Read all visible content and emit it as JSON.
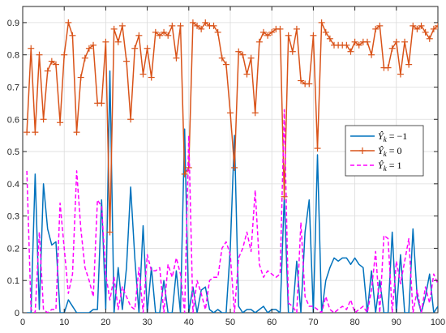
{
  "chart_data": {
    "type": "line",
    "title": "",
    "xlabel": "",
    "ylabel": "",
    "xlim": [
      0,
      100
    ],
    "ylim": [
      0,
      0.95
    ],
    "xticks": [
      0,
      10,
      20,
      30,
      40,
      50,
      60,
      70,
      80,
      90,
      100
    ],
    "yticks": [
      0,
      0.1,
      0.2,
      0.3,
      0.4,
      0.5,
      0.6,
      0.7,
      0.8,
      0.9
    ],
    "grid": true,
    "legend_position": "right",
    "x": [
      1,
      2,
      3,
      4,
      5,
      6,
      7,
      8,
      9,
      10,
      11,
      12,
      13,
      14,
      15,
      16,
      17,
      18,
      19,
      20,
      21,
      22,
      23,
      24,
      25,
      26,
      27,
      28,
      29,
      30,
      31,
      32,
      33,
      34,
      35,
      36,
      37,
      38,
      39,
      40,
      41,
      42,
      43,
      44,
      45,
      46,
      47,
      48,
      49,
      50,
      51,
      52,
      53,
      54,
      55,
      56,
      57,
      58,
      59,
      60,
      61,
      62,
      63,
      64,
      65,
      66,
      67,
      68,
      69,
      70,
      71,
      72,
      73,
      74,
      75,
      76,
      77,
      78,
      79,
      80,
      81,
      82,
      83,
      84,
      85,
      86,
      87,
      88,
      89,
      90,
      91,
      92,
      93,
      94,
      95,
      96,
      97,
      98,
      99,
      100
    ],
    "series": [
      {
        "name": "Ŷk = −1",
        "legend": {
          "var": "Ŷ",
          "sub": "k",
          "rest": " = −1"
        },
        "color": "#0072BD",
        "style": "solid",
        "marker": "none",
        "values": [
          0.0,
          0.0,
          0.43,
          0.01,
          0.4,
          0.26,
          0.21,
          0.22,
          0.0,
          0.0,
          0.04,
          0.02,
          0.0,
          0.0,
          0.0,
          0.0,
          0.01,
          0.01,
          0.35,
          0.01,
          0.75,
          0.0,
          0.14,
          0.01,
          0.14,
          0.39,
          0.17,
          0.0,
          0.27,
          0.0,
          0.14,
          0.0,
          0.0,
          0.1,
          0.0,
          0.0,
          0.13,
          0.0,
          0.57,
          0.0,
          0.08,
          0.0,
          0.07,
          0.08,
          0.01,
          0.0,
          0.01,
          0.0,
          0.0,
          0.2,
          0.55,
          0.02,
          0.0,
          0.01,
          0.01,
          0.0,
          0.01,
          0.02,
          0.0,
          0.01,
          0.01,
          0.0,
          0.36,
          0.0,
          0.0,
          0.16,
          0.0,
          0.25,
          0.35,
          0.0,
          0.49,
          0.0,
          0.1,
          0.14,
          0.17,
          0.16,
          0.17,
          0.17,
          0.15,
          0.17,
          0.15,
          0.14,
          0.0,
          0.13,
          0.0,
          0.1,
          0.0,
          0.0,
          0.25,
          0.0,
          0.18,
          0.0,
          0.0,
          0.26,
          0.05,
          0.0,
          0.05,
          0.12,
          0.0,
          0.02
        ]
      },
      {
        "name": "Ŷk = 0",
        "legend": {
          "var": "Ŷ",
          "sub": "k",
          "rest": " = 0"
        },
        "color": "#D95319",
        "style": "solid",
        "marker": "plus",
        "values": [
          0.56,
          0.82,
          0.56,
          0.8,
          0.6,
          0.75,
          0.78,
          0.77,
          0.59,
          0.8,
          0.9,
          0.86,
          0.56,
          0.73,
          0.79,
          0.82,
          0.83,
          0.65,
          0.65,
          0.84,
          0.25,
          0.88,
          0.84,
          0.89,
          0.78,
          0.6,
          0.82,
          0.86,
          0.74,
          0.82,
          0.73,
          0.87,
          0.86,
          0.87,
          0.86,
          0.89,
          0.79,
          0.89,
          0.43,
          0.45,
          0.9,
          0.89,
          0.88,
          0.9,
          0.89,
          0.89,
          0.87,
          0.79,
          0.77,
          0.62,
          0.45,
          0.81,
          0.8,
          0.74,
          0.79,
          0.62,
          0.84,
          0.87,
          0.86,
          0.87,
          0.88,
          0.88,
          0.36,
          0.86,
          0.81,
          0.88,
          0.72,
          0.71,
          0.71,
          0.86,
          0.51,
          0.9,
          0.87,
          0.85,
          0.83,
          0.83,
          0.83,
          0.83,
          0.81,
          0.84,
          0.83,
          0.84,
          0.84,
          0.8,
          0.88,
          0.89,
          0.76,
          0.76,
          0.82,
          0.84,
          0.74,
          0.84,
          0.77,
          0.89,
          0.88,
          0.89,
          0.87,
          0.85,
          0.88,
          0.89
        ]
      },
      {
        "name": "Ŷk = 1",
        "legend": {
          "var": "Ŷ",
          "sub": "k",
          "rest": " = 1"
        },
        "color": "#FF00FF",
        "style": "dashed",
        "marker": "none",
        "values": [
          0.44,
          0.01,
          0.0,
          0.25,
          0.01,
          0.0,
          0.01,
          0.01,
          0.34,
          0.2,
          0.06,
          0.12,
          0.44,
          0.26,
          0.14,
          0.1,
          0.05,
          0.35,
          0.33,
          0.12,
          0.04,
          0.11,
          0.01,
          0.08,
          0.05,
          0.02,
          0.01,
          0.14,
          0.0,
          0.18,
          0.13,
          0.13,
          0.14,
          0.0,
          0.15,
          0.11,
          0.17,
          0.12,
          0.0,
          0.55,
          0.0,
          0.1,
          0.06,
          0.01,
          0.1,
          0.11,
          0.11,
          0.2,
          0.22,
          0.18,
          0.0,
          0.17,
          0.2,
          0.25,
          0.19,
          0.38,
          0.15,
          0.11,
          0.13,
          0.12,
          0.11,
          0.12,
          0.63,
          0.03,
          0.02,
          0.0,
          0.28,
          0.05,
          0.02,
          0.02,
          0.01,
          0.0,
          0.05,
          0.01,
          0.0,
          0.01,
          0.02,
          0.01,
          0.04,
          0.0,
          0.01,
          0.02,
          0.0,
          0.07,
          0.19,
          0.0,
          0.24,
          0.23,
          0.0,
          0.16,
          0.09,
          0.16,
          0.23,
          0.0,
          0.07,
          0.0,
          0.08,
          0.03,
          0.12,
          0.09
        ]
      }
    ]
  }
}
